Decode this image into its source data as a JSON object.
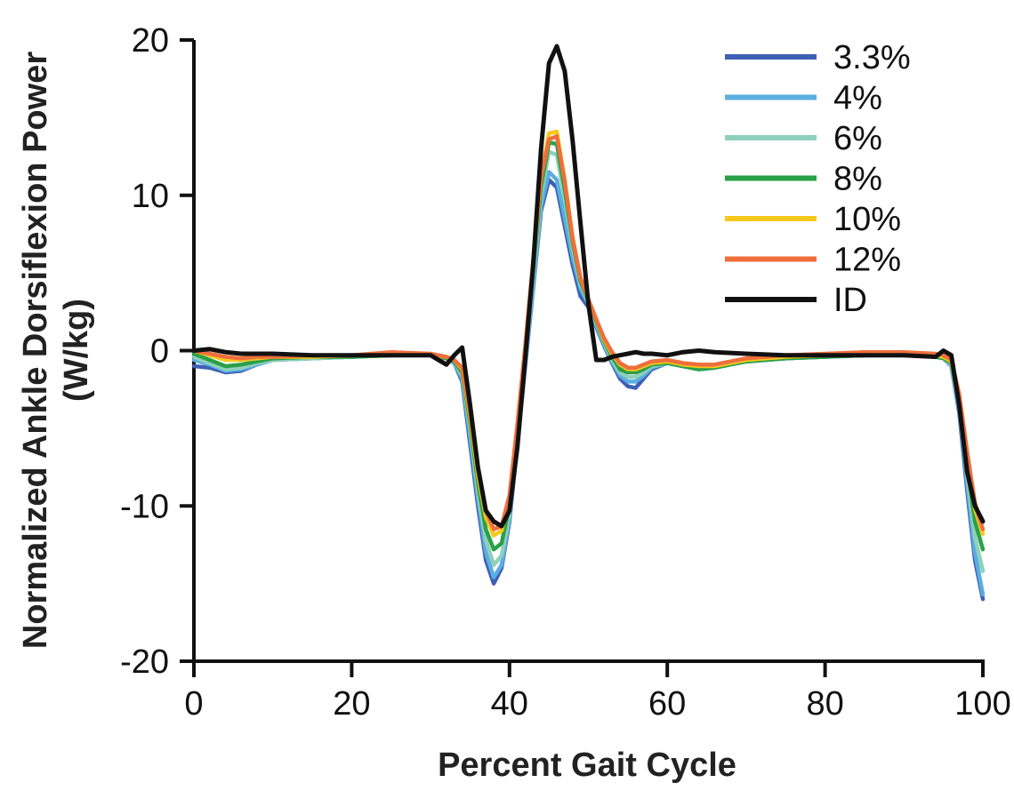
{
  "chart_data": {
    "type": "line",
    "title": "",
    "xlabel": "Percent Gait Cycle",
    "ylabel_line1": "Normalized Ankle Dorsiflexion Power",
    "ylabel_line2": "(W/kg)",
    "xlim": [
      0,
      100
    ],
    "ylim": [
      -20,
      20
    ],
    "xticks": [
      0,
      20,
      40,
      60,
      80,
      100
    ],
    "xtick_labels": [
      "0",
      "20",
      "40",
      "60",
      "80",
      "100"
    ],
    "yticks": [
      20,
      10,
      0,
      -10,
      -20
    ],
    "ytick_labels": [
      "20",
      "10",
      "0",
      "-10",
      "-20"
    ],
    "grid": false,
    "legend_position": "top-right",
    "x": [
      0,
      2,
      4,
      6,
      8,
      10,
      15,
      20,
      25,
      30,
      32,
      33,
      34,
      35,
      36,
      37,
      38,
      39,
      40,
      41,
      42,
      43,
      44,
      45,
      46,
      47,
      48,
      49,
      50,
      51,
      52,
      53,
      54,
      55,
      56,
      57,
      58,
      60,
      62,
      64,
      66,
      70,
      75,
      80,
      85,
      90,
      94,
      95,
      96,
      97,
      98,
      99,
      100
    ],
    "series": [
      {
        "name": "3.3%",
        "color": "#3f5fb5",
        "values": [
          -1,
          -1.1,
          -1.4,
          -1.3,
          -0.9,
          -0.6,
          -0.5,
          -0.4,
          -0.3,
          -0.3,
          -0.5,
          -0.8,
          -2,
          -6,
          -10,
          -13.5,
          -15,
          -14,
          -11,
          -6,
          -1,
          4,
          9,
          11,
          10.5,
          8,
          5.5,
          3.5,
          2.8,
          1.5,
          0.3,
          -0.8,
          -1.8,
          -2.3,
          -2.4,
          -1.8,
          -1.2,
          -0.8,
          -1,
          -1.2,
          -1.1,
          -0.7,
          -0.5,
          -0.4,
          -0.3,
          -0.3,
          -0.4,
          -0.5,
          -1,
          -4,
          -9,
          -13.5,
          -16
        ]
      },
      {
        "name": "4%",
        "color": "#5aaee0",
        "values": [
          -0.6,
          -0.9,
          -1.3,
          -1.2,
          -0.9,
          -0.6,
          -0.5,
          -0.4,
          -0.3,
          -0.3,
          -0.5,
          -0.8,
          -1.8,
          -5.5,
          -9.5,
          -13,
          -14.6,
          -13.8,
          -10.8,
          -5.8,
          -0.8,
          4.2,
          9.3,
          11.5,
          11,
          8.5,
          6,
          4,
          3,
          1.6,
          0.4,
          -0.7,
          -1.6,
          -2,
          -2,
          -1.6,
          -1.1,
          -0.8,
          -1,
          -1.2,
          -1.1,
          -0.7,
          -0.5,
          -0.4,
          -0.3,
          -0.3,
          -0.4,
          -0.5,
          -1,
          -3.8,
          -8.5,
          -13,
          -15.7
        ]
      },
      {
        "name": "6%",
        "color": "#8fd0bc",
        "values": [
          -0.4,
          -0.8,
          -1.2,
          -1.1,
          -0.8,
          -0.6,
          -0.5,
          -0.4,
          -0.3,
          -0.3,
          -0.5,
          -0.7,
          -1.6,
          -5,
          -9,
          -12.2,
          -13.8,
          -13.2,
          -10.5,
          -5.5,
          -0.5,
          4.8,
          10,
          12.8,
          12.6,
          9.8,
          6.6,
          4.3,
          3.1,
          1.8,
          0.5,
          -0.6,
          -1.4,
          -1.7,
          -1.7,
          -1.4,
          -1,
          -0.8,
          -1,
          -1.2,
          -1.1,
          -0.7,
          -0.5,
          -0.4,
          -0.3,
          -0.3,
          -0.4,
          -0.5,
          -0.9,
          -3.5,
          -8,
          -12,
          -14.2
        ]
      },
      {
        "name": "8%",
        "color": "#2aa048",
        "values": [
          -0.2,
          -0.6,
          -1,
          -0.9,
          -0.7,
          -0.5,
          -0.4,
          -0.4,
          -0.3,
          -0.3,
          -0.5,
          -0.7,
          -1.4,
          -4.6,
          -8.5,
          -11.5,
          -12.8,
          -12.4,
          -10,
          -5.2,
          -0.2,
          5.2,
          10.6,
          13.4,
          13.3,
          10.4,
          7,
          4.5,
          3.2,
          1.9,
          0.6,
          -0.4,
          -1.2,
          -1.4,
          -1.4,
          -1.2,
          -0.9,
          -0.8,
          -1,
          -1.2,
          -1.1,
          -0.7,
          -0.5,
          -0.4,
          -0.3,
          -0.3,
          -0.4,
          -0.5,
          -0.8,
          -3.2,
          -7.4,
          -11,
          -12.8
        ]
      },
      {
        "name": "10%",
        "color": "#f6c81c",
        "values": [
          0,
          -0.3,
          -0.6,
          -0.6,
          -0.5,
          -0.4,
          -0.4,
          -0.3,
          -0.2,
          -0.3,
          -0.4,
          -0.6,
          -1.2,
          -4.2,
          -8,
          -10.7,
          -11.9,
          -11.6,
          -9.5,
          -4.9,
          0.1,
          5.6,
          11.2,
          14,
          14.1,
          11,
          7.3,
          4.7,
          3.3,
          2,
          0.7,
          -0.2,
          -0.9,
          -1.2,
          -1.2,
          -1,
          -0.8,
          -0.7,
          -0.9,
          -1,
          -1,
          -0.6,
          -0.4,
          -0.3,
          -0.2,
          -0.2,
          -0.3,
          -0.4,
          -0.7,
          -3,
          -6.9,
          -10.2,
          -11.8
        ]
      },
      {
        "name": "12%",
        "color": "#ee6f3c",
        "values": [
          0,
          -0.2,
          -0.4,
          -0.5,
          -0.4,
          -0.4,
          -0.3,
          -0.3,
          -0.1,
          -0.2,
          -0.4,
          -0.6,
          -1.1,
          -4,
          -7.6,
          -10.3,
          -11.5,
          -11.3,
          -9.3,
          -4.7,
          0.3,
          5.8,
          11.2,
          13.6,
          13.8,
          10.9,
          7.2,
          4.7,
          3.3,
          2,
          0.8,
          -0.1,
          -0.8,
          -1.1,
          -1.1,
          -0.9,
          -0.7,
          -0.6,
          -0.8,
          -0.9,
          -0.9,
          -0.5,
          -0.3,
          -0.2,
          -0.1,
          -0.1,
          -0.2,
          -0.3,
          -0.6,
          -2.8,
          -6.5,
          -9.8,
          -11.5
        ]
      },
      {
        "name": "ID",
        "color": "#111111",
        "values": [
          0,
          0.1,
          -0.1,
          -0.2,
          -0.2,
          -0.2,
          -0.3,
          -0.3,
          -0.3,
          -0.3,
          -0.9,
          -0.3,
          0.2,
          -3.5,
          -7.5,
          -10.3,
          -11,
          -11.3,
          -10.3,
          -6.2,
          -0.5,
          5.5,
          13,
          18.5,
          19.6,
          18,
          13.5,
          8.2,
          3,
          -0.6,
          -0.6,
          -0.4,
          -0.3,
          -0.2,
          -0.1,
          -0.2,
          -0.2,
          -0.3,
          -0.1,
          0,
          -0.1,
          -0.2,
          -0.3,
          -0.3,
          -0.3,
          -0.3,
          -0.4,
          0,
          -0.3,
          -3.5,
          -7.8,
          -10,
          -11
        ]
      }
    ]
  }
}
